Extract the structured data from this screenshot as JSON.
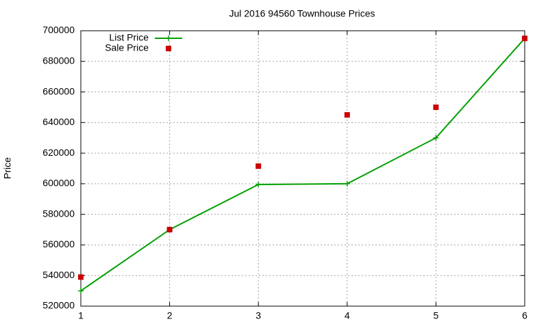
{
  "chart_data": {
    "type": "line",
    "title": "Jul 2016 94560 Townhouse Prices",
    "y_label": "Price",
    "x": [
      1,
      2,
      3,
      4,
      5,
      6
    ],
    "series": [
      {
        "name": "List Price",
        "color": "#00a000",
        "mode": "lines+markers",
        "marker": "plus",
        "values": [
          530000,
          570000,
          599500,
          600000,
          630000,
          695000
        ]
      },
      {
        "name": "Sale Price",
        "color": "#cc0000",
        "mode": "markers",
        "marker": "square",
        "values": [
          539000,
          570000,
          611500,
          645000,
          650000,
          695000
        ]
      }
    ],
    "xlim": [
      1,
      6
    ],
    "xticks": [
      1,
      2,
      3,
      4,
      5,
      6
    ],
    "ylim": [
      520000,
      700000
    ],
    "yticks": [
      520000,
      540000,
      560000,
      580000,
      600000,
      620000,
      640000,
      660000,
      680000,
      700000
    ],
    "grid": true,
    "legend": "upper-left"
  }
}
